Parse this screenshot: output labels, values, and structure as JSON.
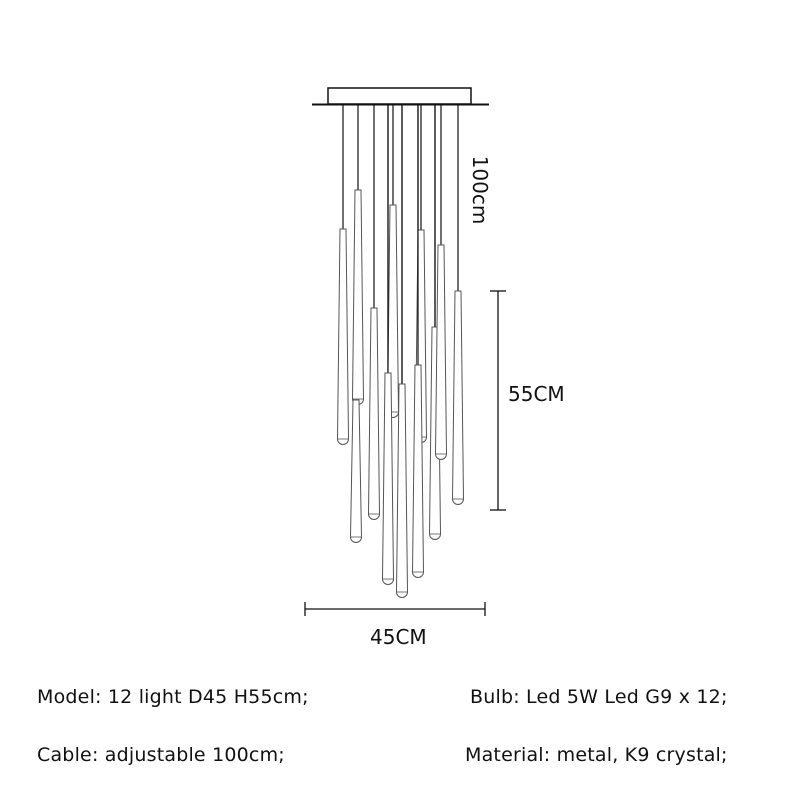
{
  "dimensions": {
    "cable_length": "100cm",
    "height": "55CM",
    "diameter": "45CM"
  },
  "specs": {
    "model": "Model: 12 light D45 H55cm;",
    "bulb": "Bulb: Led 5W Led G9 x 12;",
    "cable": "Cable: adjustable 100cm;",
    "material": "Material: metal, K9 crystal;"
  }
}
